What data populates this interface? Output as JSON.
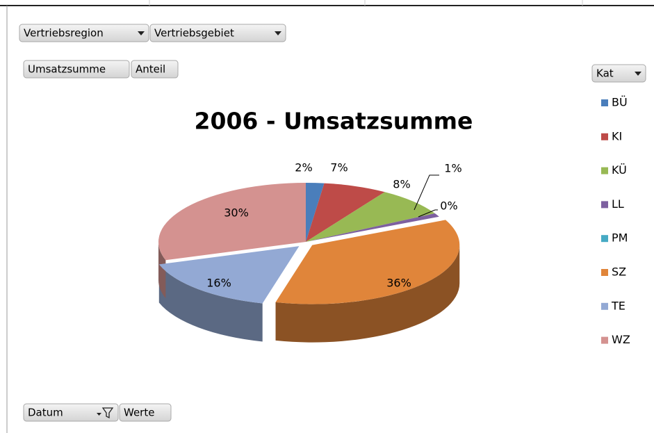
{
  "field_buttons": {
    "filters": [
      "Vertriebsregion",
      "Vertriebsgebiet"
    ],
    "values": [
      "Umsatzsumme",
      "Anteil"
    ],
    "legend": "Kat",
    "axis": [
      "Datum",
      "Werte"
    ]
  },
  "chart_data": {
    "type": "pie",
    "title": "2006 - Umsatzsumme",
    "categories": [
      "BÜ",
      "KI",
      "KÜ",
      "LL",
      "PM",
      "SZ",
      "TE",
      "WZ"
    ],
    "values": [
      2,
      7,
      8,
      1,
      0,
      36,
      16,
      30
    ],
    "value_labels": [
      "2%",
      "7%",
      "8%",
      "1%",
      "0%",
      "36%",
      "16%",
      "30%"
    ],
    "colors": [
      "#4a7ebb",
      "#be4b48",
      "#98b954",
      "#7d60a0",
      "#46aac4",
      "#e0853a",
      "#93a9d4",
      "#d49290"
    ],
    "legend": "right"
  }
}
